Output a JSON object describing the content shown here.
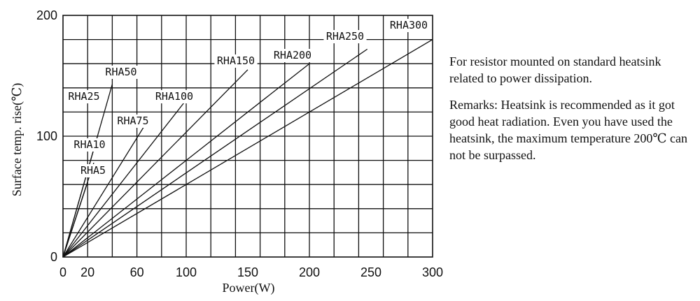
{
  "chart_data": {
    "type": "line",
    "xlabel": "Power(W)",
    "ylabel": "Surface temp. rise(℃)",
    "xlim": [
      0,
      300
    ],
    "ylim": [
      0,
      200
    ],
    "x_ticks": [
      "0",
      "20",
      "60",
      "100",
      "150",
      "200",
      "250",
      "300"
    ],
    "x_tick_values": [
      0,
      20,
      60,
      100,
      150,
      200,
      250,
      300
    ],
    "y_ticks": [
      "0",
      "100",
      "200"
    ],
    "y_tick_values": [
      0,
      100,
      200
    ],
    "grid": true,
    "series": [
      {
        "name": "RHA5",
        "x": [
          0,
          20
        ],
        "y": [
          0,
          62
        ]
      },
      {
        "name": "RHA10",
        "x": [
          0,
          25
        ],
        "y": [
          0,
          78
        ]
      },
      {
        "name": "RHA25",
        "x": [
          0,
          28
        ],
        "y": [
          0,
          100
        ]
      },
      {
        "name": "RHA50",
        "x": [
          0,
          40
        ],
        "y": [
          0,
          143
        ]
      },
      {
        "name": "RHA75",
        "x": [
          0,
          70
        ],
        "y": [
          0,
          115
        ]
      },
      {
        "name": "RHA100",
        "x": [
          0,
          100
        ],
        "y": [
          0,
          130
        ]
      },
      {
        "name": "RHA150",
        "x": [
          0,
          150
        ],
        "y": [
          0,
          155
        ]
      },
      {
        "name": "RHA200",
        "x": [
          0,
          200
        ],
        "y": [
          0,
          160
        ]
      },
      {
        "name": "RHA250",
        "x": [
          0,
          247
        ],
        "y": [
          0,
          172
        ]
      },
      {
        "name": "RHA300",
        "x": [
          0,
          300
        ],
        "y": [
          0,
          180
        ]
      }
    ]
  },
  "notes": {
    "line1": "For resistor mounted on standard heatsink related to power dissipation.",
    "line2": "Remarks: Heatsink is recommended as it got good heat radiation. Even you have used the heatsink, the maximum temperature 200℃ can not be surpassed."
  }
}
